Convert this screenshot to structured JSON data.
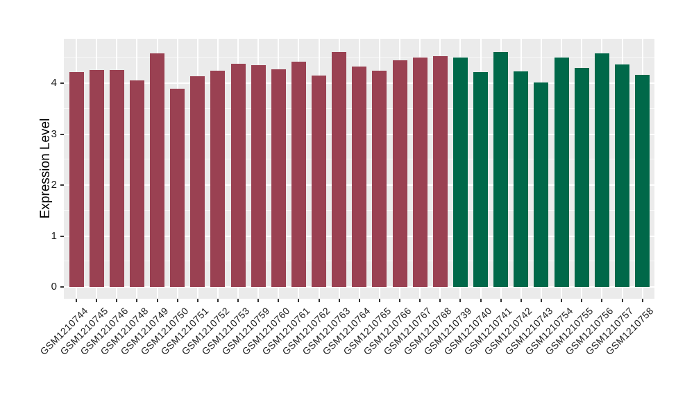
{
  "chart_data": {
    "type": "bar",
    "title": "",
    "xlabel": "",
    "ylabel": "Expression Level",
    "ylim": [
      0,
      4.9
    ],
    "yticks": [
      0,
      1,
      2,
      3,
      4
    ],
    "grid": "on",
    "legend": "none",
    "panel_bg": "#EBEBEB",
    "grid_color": "#FFFFFF",
    "group_colors": {
      "left_group": "#9A4152",
      "right_group": "#006849"
    },
    "categories": [
      "GSM1210744",
      "GSM1210745",
      "GSM1210746",
      "GSM1210748",
      "GSM1210749",
      "GSM1210750",
      "GSM1210751",
      "GSM1210752",
      "GSM1210753",
      "GSM1210759",
      "GSM1210760",
      "GSM1210761",
      "GSM1210762",
      "GSM1210763",
      "GSM1210764",
      "GSM1210765",
      "GSM1210766",
      "GSM1210767",
      "GSM1210768",
      "GSM1210739",
      "GSM1210740",
      "GSM1210741",
      "GSM1210742",
      "GSM1210743",
      "GSM1210754",
      "GSM1210755",
      "GSM1210756",
      "GSM1210757",
      "GSM1210758"
    ],
    "values": [
      4.22,
      4.26,
      4.26,
      4.06,
      4.58,
      3.89,
      4.13,
      4.24,
      4.38,
      4.36,
      4.27,
      4.42,
      4.15,
      4.61,
      4.33,
      4.25,
      4.45,
      4.5,
      4.53,
      4.51,
      4.22,
      4.61,
      4.23,
      4.02,
      4.5,
      4.3,
      4.59,
      4.37,
      4.17
    ],
    "bar_fills": [
      "#9A4152",
      "#9A4152",
      "#9A4152",
      "#9A4152",
      "#9A4152",
      "#9A4152",
      "#9A4152",
      "#9A4152",
      "#9A4152",
      "#9A4152",
      "#9A4152",
      "#9A4152",
      "#9A4152",
      "#9A4152",
      "#9A4152",
      "#9A4152",
      "#9A4152",
      "#9A4152",
      "#9A4152",
      "#006849",
      "#006849",
      "#006849",
      "#006849",
      "#006849",
      "#006849",
      "#006849",
      "#006849",
      "#006849",
      "#006849"
    ]
  }
}
